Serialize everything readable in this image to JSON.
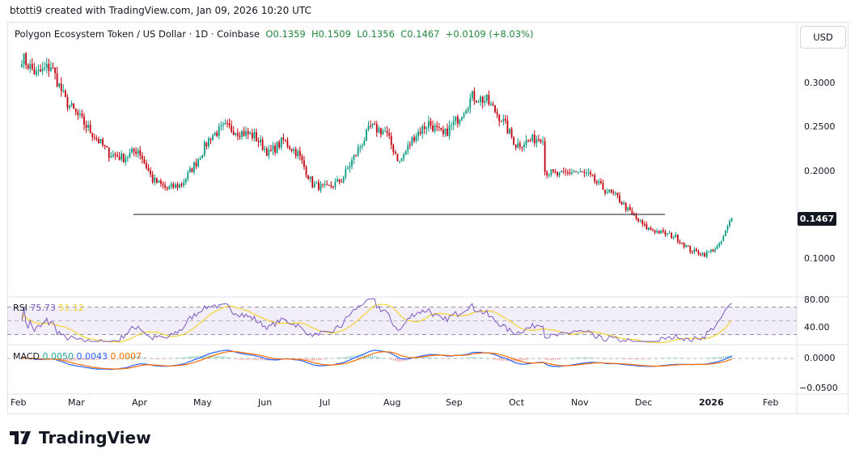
{
  "header": {
    "credit": "btotti9 created with TradingView.com, Jan 09, 2026 10:20 UTC"
  },
  "legend": {
    "symbol": "Polygon Ecosystem Token / US Dollar · 1D · Coinbase",
    "open": "O0.1359",
    "high": "H0.1509",
    "low": "L0.1356",
    "close": "C0.1467",
    "change": "+0.0109 (+8.03%)"
  },
  "currency_button": "USD",
  "last_price": "0.1467",
  "price_axis": [
    "0.3000",
    "0.2500",
    "0.2000",
    "0.1000"
  ],
  "rsi": {
    "label": "RSI",
    "value": "75.73",
    "ma": "51.12",
    "axis": [
      "80.00",
      "40.00"
    ],
    "color": "#7e57c2",
    "ma_color": "#f5d22e"
  },
  "macd": {
    "label": "MACD",
    "hist": "0.0050",
    "macd": "0.0043",
    "signal": "0.0007",
    "axis": [
      "0.0000",
      "−0.0500"
    ],
    "hist_color": "#26a69a",
    "macd_color": "#2962ff",
    "signal_color": "#ff6d00"
  },
  "time_axis": [
    "Feb",
    "Mar",
    "Apr",
    "May",
    "Jun",
    "Jul",
    "Aug",
    "Sep",
    "Oct",
    "Nov",
    "Dec",
    "2026",
    "Feb"
  ],
  "brand": "TradingView",
  "colors": {
    "up": "#089981",
    "down": "#c2000e",
    "support_line": "#131722"
  },
  "chart_data": {
    "type": "candlestick",
    "interval": "1D",
    "support_level": 0.1507,
    "ylim": [
      0.08,
      0.34
    ],
    "weekly_closes": [
      [
        "2025-02-01",
        0.33
      ],
      [
        "2025-02-08",
        0.31
      ],
      [
        "2025-02-15",
        0.32
      ],
      [
        "2025-02-22",
        0.28
      ],
      [
        "2025-03-01",
        0.26
      ],
      [
        "2025-03-08",
        0.24
      ],
      [
        "2025-03-15",
        0.22
      ],
      [
        "2025-03-22",
        0.215
      ],
      [
        "2025-03-29",
        0.225
      ],
      [
        "2025-04-05",
        0.19
      ],
      [
        "2025-04-12",
        0.18
      ],
      [
        "2025-04-19",
        0.185
      ],
      [
        "2025-04-26",
        0.21
      ],
      [
        "2025-05-03",
        0.24
      ],
      [
        "2025-05-10",
        0.25
      ],
      [
        "2025-05-17",
        0.245
      ],
      [
        "2025-05-24",
        0.24
      ],
      [
        "2025-05-31",
        0.22
      ],
      [
        "2025-06-07",
        0.235
      ],
      [
        "2025-06-14",
        0.22
      ],
      [
        "2025-06-21",
        0.185
      ],
      [
        "2025-06-28",
        0.18
      ],
      [
        "2025-07-05",
        0.19
      ],
      [
        "2025-07-12",
        0.22
      ],
      [
        "2025-07-19",
        0.25
      ],
      [
        "2025-07-26",
        0.245
      ],
      [
        "2025-08-02",
        0.21
      ],
      [
        "2025-08-09",
        0.24
      ],
      [
        "2025-08-16",
        0.255
      ],
      [
        "2025-08-23",
        0.24
      ],
      [
        "2025-08-30",
        0.26
      ],
      [
        "2025-09-06",
        0.285
      ],
      [
        "2025-09-13",
        0.28
      ],
      [
        "2025-09-20",
        0.26
      ],
      [
        "2025-09-27",
        0.23
      ],
      [
        "2025-10-04",
        0.235
      ],
      [
        "2025-10-10",
        0.24
      ],
      [
        "2025-10-11",
        0.2
      ],
      [
        "2025-10-18",
        0.195
      ],
      [
        "2025-10-25",
        0.2
      ],
      [
        "2025-11-01",
        0.195
      ],
      [
        "2025-11-08",
        0.18
      ],
      [
        "2025-11-15",
        0.17
      ],
      [
        "2025-11-22",
        0.15
      ],
      [
        "2025-11-29",
        0.135
      ],
      [
        "2025-12-06",
        0.13
      ],
      [
        "2025-12-13",
        0.125
      ],
      [
        "2025-12-20",
        0.11
      ],
      [
        "2025-12-27",
        0.105
      ],
      [
        "2026-01-03",
        0.115
      ],
      [
        "2026-01-09",
        0.1467
      ]
    ]
  }
}
